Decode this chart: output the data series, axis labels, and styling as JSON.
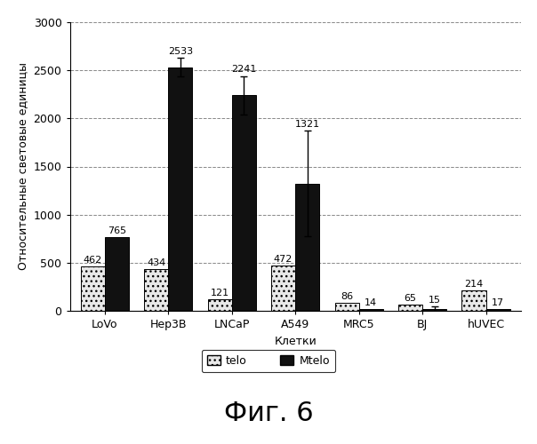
{
  "categories": [
    "LoVo",
    "Hep3B",
    "LNCaP",
    "A549",
    "MRC5",
    "BJ",
    "hUVEC"
  ],
  "telo_values": [
    462,
    434,
    121,
    472,
    86,
    65,
    214
  ],
  "mtelo_values": [
    765,
    2533,
    2241,
    1321,
    14,
    15,
    17
  ],
  "mtelo_errors": [
    0,
    100,
    200,
    550,
    0,
    30,
    0
  ],
  "ylim": [
    0,
    3000
  ],
  "yticks": [
    0,
    500,
    1000,
    1500,
    2000,
    2500,
    3000
  ],
  "xlabel": "Клетки",
  "ylabel": "Относительные световые единицы",
  "legend_telo": "telo",
  "legend_mtelo": "Mtelo",
  "mtelo_color": "#111111",
  "title_fig": "Фиг. 6",
  "bar_width": 0.38,
  "fontsize_values": 8,
  "fontsize_ticks": 9,
  "fontsize_axis_label": 9,
  "fontsize_fig": 22,
  "background_color": "#ffffff"
}
